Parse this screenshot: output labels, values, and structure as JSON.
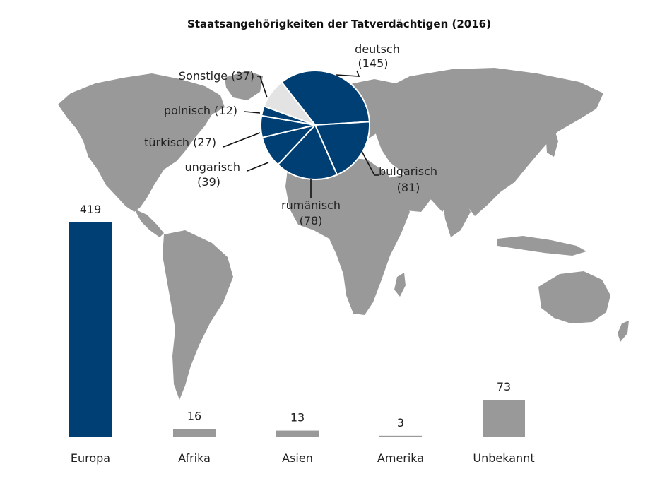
{
  "chart_data": [
    {
      "type": "pie",
      "title": "Staatsangehörigkeiten der Tatverdächtigen (2016)",
      "slices": [
        {
          "name": "deutsch",
          "value": 145,
          "value_label": "(145)",
          "color": "#003f73"
        },
        {
          "name": "bulgarisch",
          "value": 81,
          "value_label": "(81)",
          "color": "#003f73"
        },
        {
          "name": "rumänisch",
          "value": 78,
          "value_label": "(78)",
          "color": "#003f73"
        },
        {
          "name": "ungarisch",
          "value": 39,
          "value_label": "(39)",
          "color": "#003f73"
        },
        {
          "name": "türkisch",
          "value": 27,
          "value_label": "(27)",
          "color": "#003f73"
        },
        {
          "name": "polnisch",
          "value": 12,
          "value_label": "(12)",
          "color": "#003f73"
        },
        {
          "name": "Sonstige",
          "value": 37,
          "value_label": "(37)",
          "color": "#e3e3e3"
        }
      ]
    },
    {
      "type": "bar",
      "categories": [
        "Europa",
        "Afrika",
        "Asien",
        "Amerika",
        "Unbekannt"
      ],
      "values": [
        419,
        16,
        13,
        3,
        73
      ],
      "colors": [
        "#003f73",
        "#999999",
        "#999999",
        "#999999",
        "#999999"
      ],
      "ylim": [
        0,
        419
      ]
    }
  ],
  "map_color": "#999999"
}
